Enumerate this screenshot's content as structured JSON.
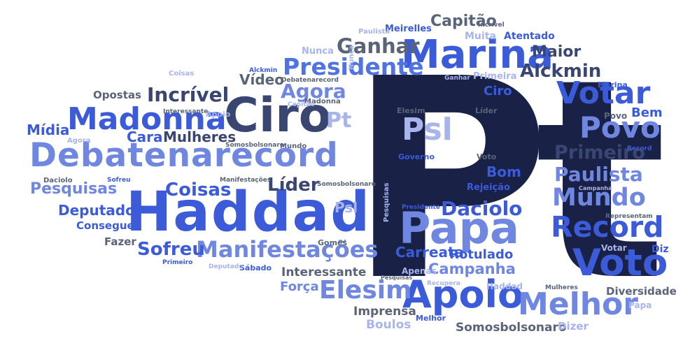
{
  "palette": {
    "navy": "#1a2146",
    "dark": "#3a4672",
    "slate": "#5a6478",
    "royal": "#3b5bd9",
    "blue": "#4f73e3",
    "mid": "#6f87e0",
    "peri": "#8a9ae6",
    "pale": "#a8b4ec"
  },
  "words": {
    "pt": "Pt",
    "haddad": "Haddad",
    "marina": "Marina",
    "ciro": "Ciro",
    "debatenarecord": "Debatenarecord",
    "papa": "Papa",
    "apoio": "Apoio",
    "voto": "Voto",
    "melhor": "Melhor",
    "madonna": "Madonna",
    "psl_big": "Psl",
    "votar_big": "Votar",
    "povo_big": "Povo",
    "record_big": "Record",
    "manifestacoes": "Manifestações",
    "elesim_big": "Elesim",
    "presidente_big": "Presidente",
    "mundo_big": "Mundo",
    "daciolo_big": "Daciolo",
    "incrivel_big": "Incrível",
    "ganhar_big": "Ganhar",
    "agora_big": "Agora",
    "primeiro_big": "Primeiro",
    "paulista_big": "Paulista",
    "alckmin_big": "Alckmin",
    "coisas_big": "Coisas",
    "lider_big": "Líder",
    "sofreu_big": "Sofreu",
    "pesquisas": "Pesquisas",
    "mulheres_big": "Mulheres",
    "campanha_big": "Campanha",
    "carreata": "Carreata",
    "rotulado": "Rotulado",
    "capitao": "Capitão",
    "maior": "Maior",
    "deputado_big": "Deputado",
    "midia": "Mídia",
    "cara": "Cara",
    "video": "Vídeo",
    "bom": "Bom",
    "bem": "Bem",
    "psl_small": "Psl",
    "pt_small": "Pt",
    "somosbolsonaro_big": "Somosbolsonaro",
    "interessante_big": "Interessante",
    "imprensa": "Imprensa",
    "boulos": "Boulos",
    "diversidade": "Diversidade",
    "forca": "Força",
    "consegue": "Consegue",
    "fazer": "Fazer",
    "opostas": "Opostas",
    "ciro_small": "Ciro",
    "povo_small": "Povo",
    "diz": "Diz",
    "dizer": "Dizer",
    "atentado": "Atentado",
    "muita": "Muita",
    "meirelles": "Meirelles",
    "rejeicao": "Rejeição",
    "primeira": "Primeira",
    "nunca": "Nunca",
    "apenas": "Apenas",
    "votar_small": "Votar",
    "papa_small": "Papa",
    "haddad_small": "Haddad",
    "melhor_small": "Melhor",
    "governo": "Governo",
    "voto_small": "Voto",
    "elesim_small": "Elesim",
    "lider_small": "Líder",
    "marina_small": "Marina",
    "gomes": "Gomes",
    "sabado": "Sábado",
    "apoio_small": "Apoio",
    "madonna_small": "Madonna",
    "paulista_small": "Paulista",
    "incrivel_small": "Incrível",
    "alckmin_small": "Alckmin",
    "debatenarecord_small": "Debatenarecord",
    "capitao_small": "Capitão",
    "ganhar_small": "Ganhar",
    "interessante_small": "Interessante",
    "agora_small": "Agora",
    "somosbolsonaro_small": "Somosbolsonaro",
    "somosbolsonaro_small2": "Somosbolsonaro",
    "mundo_small": "Mundo",
    "daciolo_small": "Daciolo",
    "sofreu_small": "Sofreu",
    "manifestacoes_small": "Manifestações",
    "presidente_small": "Presidente",
    "primeiro_small": "Primeiro",
    "deputado_small": "Deputado",
    "pesquisas_small": "Pesquisas",
    "recupera": "Recupera",
    "mulheres_small": "Mulheres",
    "representam": "Representam",
    "campanha_small": "Campanha",
    "record_small": "Record",
    "coisas_small": "Coisas",
    "pesquisas_v": "Pesquisas"
  }
}
